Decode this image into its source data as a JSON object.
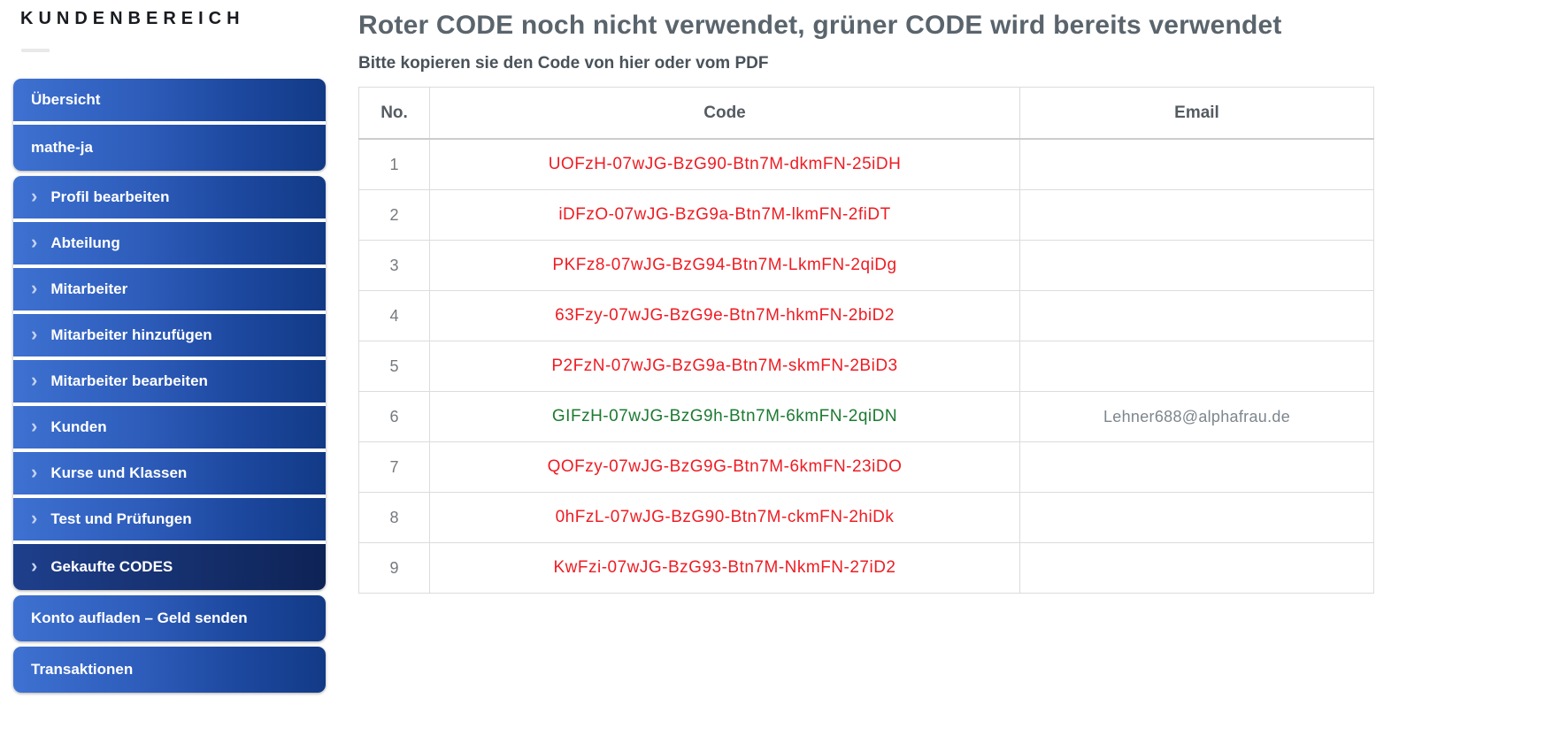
{
  "brand": {
    "title": "KUNDENBEREICH"
  },
  "sidebar": {
    "groups": [
      {
        "items": [
          {
            "label": "Übersicht",
            "chevron": false,
            "active": false
          },
          {
            "label": "mathe-ja",
            "chevron": false,
            "active": false
          }
        ]
      },
      {
        "items": [
          {
            "label": "Profil bearbeiten",
            "chevron": true,
            "active": false
          },
          {
            "label": "Abteilung",
            "chevron": true,
            "active": false
          },
          {
            "label": "Mitarbeiter",
            "chevron": true,
            "active": false
          },
          {
            "label": "Mitarbeiter hinzufügen",
            "chevron": true,
            "active": false
          },
          {
            "label": "Mitarbeiter bearbeiten",
            "chevron": true,
            "active": false
          },
          {
            "label": "Kunden",
            "chevron": true,
            "active": false
          },
          {
            "label": "Kurse und Klassen",
            "chevron": true,
            "active": false
          },
          {
            "label": "Test und Prüfungen",
            "chevron": true,
            "active": false
          },
          {
            "label": "Gekaufte CODES",
            "chevron": true,
            "active": true
          }
        ]
      },
      {
        "items": [
          {
            "label": "Konto aufladen – Geld senden",
            "chevron": false,
            "active": false
          }
        ]
      },
      {
        "items": [
          {
            "label": "Transaktionen",
            "chevron": false,
            "active": false
          }
        ]
      }
    ]
  },
  "main": {
    "title": "Roter CODE noch nicht verwendet, grüner CODE wird bereits verwendet",
    "subtitle": "Bitte kopieren sie den Code von hier oder vom PDF",
    "table": {
      "headers": [
        "No.",
        "Code",
        "Email"
      ],
      "rows": [
        {
          "no": "1",
          "code": "UOFzH-07wJG-BzG90-Btn7M-dkmFN-25iDH",
          "email": "",
          "status": "unused"
        },
        {
          "no": "2",
          "code": "iDFzO-07wJG-BzG9a-Btn7M-lkmFN-2fiDT",
          "email": "",
          "status": "unused"
        },
        {
          "no": "3",
          "code": "PKFz8-07wJG-BzG94-Btn7M-LkmFN-2qiDg",
          "email": "",
          "status": "unused"
        },
        {
          "no": "4",
          "code": "63Fzy-07wJG-BzG9e-Btn7M-hkmFN-2biD2",
          "email": "",
          "status": "unused"
        },
        {
          "no": "5",
          "code": "P2FzN-07wJG-BzG9a-Btn7M-skmFN-2BiD3",
          "email": "",
          "status": "unused"
        },
        {
          "no": "6",
          "code": "GIFzH-07wJG-BzG9h-Btn7M-6kmFN-2qiDN",
          "email": "Lehner688@alphafrau.de",
          "status": "used"
        },
        {
          "no": "7",
          "code": "QOFzy-07wJG-BzG9G-Btn7M-6kmFN-23iDO",
          "email": "",
          "status": "unused"
        },
        {
          "no": "8",
          "code": "0hFzL-07wJG-BzG90-Btn7M-ckmFN-2hiDk",
          "email": "",
          "status": "unused"
        },
        {
          "no": "9",
          "code": "KwFzi-07wJG-BzG93-Btn7M-NkmFN-27iD2",
          "email": "",
          "status": "unused"
        }
      ]
    }
  },
  "colors": {
    "code_unused": "#ee1c23",
    "code_used": "#1c7a31",
    "accent_blue": "#2e5dbb",
    "active_navy": "#16306e"
  }
}
